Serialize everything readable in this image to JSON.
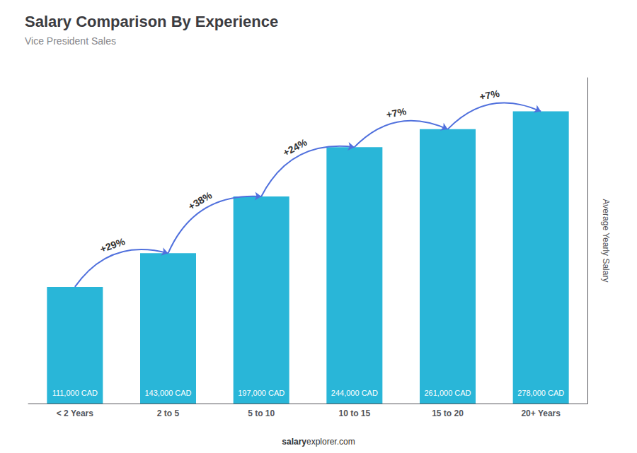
{
  "chart_data": {
    "type": "bar",
    "title": "Salary Comparison By Experience",
    "subtitle": "Vice President Sales",
    "categories": [
      "< 2 Years",
      "2 to 5",
      "5 to 10",
      "10 to 15",
      "15 to 20",
      "20+ Years"
    ],
    "values": [
      111000,
      143000,
      197000,
      244000,
      261000,
      278000
    ],
    "value_labels": [
      "111,000 CAD",
      "143,000 CAD",
      "197,000 CAD",
      "244,000 CAD",
      "261,000 CAD",
      "278,000 CAD"
    ],
    "data_labels": true,
    "annotations": [
      "+29%",
      "+38%",
      "+24%",
      "+7%",
      "+7%"
    ],
    "ylabel": "Average Yearly Salary",
    "footer": [
      "salary",
      "explorer.com"
    ],
    "color": "#29B6D8",
    "ylim": [
      0,
      310000
    ],
    "tick_labels": "x",
    "grid": false
  }
}
